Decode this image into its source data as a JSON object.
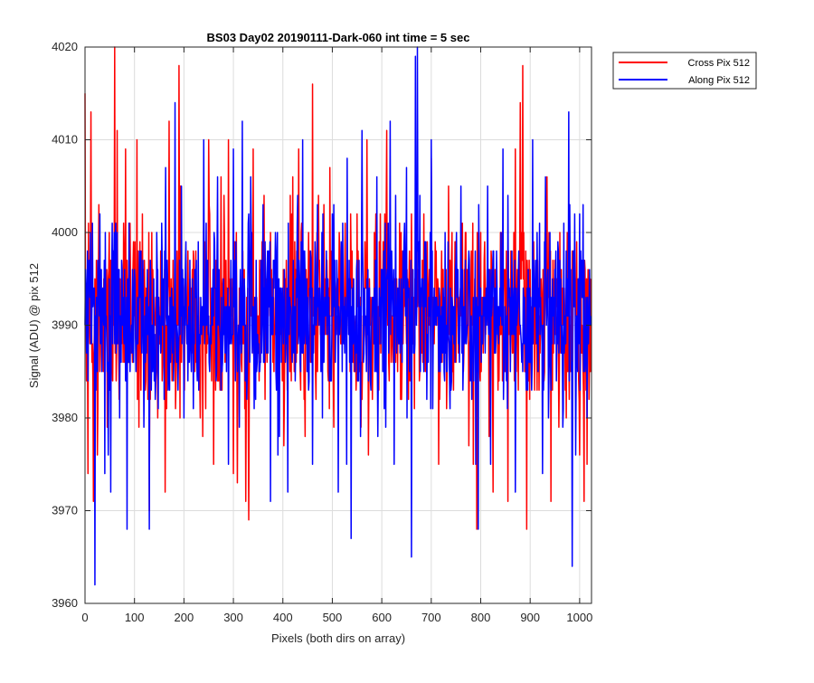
{
  "chart_data": {
    "type": "line",
    "title": "BS03 Day02 20190111-Dark-060 int time = 5 sec",
    "xlabel": "Pixels (both dirs on array)",
    "ylabel": "Signal (ADU) @ pix 512",
    "xlim": [
      0,
      1024
    ],
    "ylim": [
      3960,
      4020
    ],
    "xticks": [
      0,
      100,
      200,
      300,
      400,
      500,
      600,
      700,
      800,
      900,
      1000
    ],
    "xtick_labels": [
      "0",
      "100",
      "200",
      "300",
      "400",
      "500",
      "600",
      "700",
      "800",
      "900",
      "1000"
    ],
    "yticks": [
      3960,
      3970,
      3980,
      3990,
      4000,
      4010,
      4020
    ],
    "ytick_labels": [
      "3960",
      "3970",
      "3980",
      "3990",
      "4000",
      "4010",
      "4020"
    ],
    "grid": true,
    "legend_position": "top-right outside",
    "colors": {
      "series_red": "#ff0000",
      "series_blue": "#0000ff"
    },
    "series": [
      {
        "name": "Cross Pix 512",
        "color": "#ff0000",
        "noise": {
          "points": 1024,
          "mean": 3991,
          "seed": 1337
        },
        "spikes": [
          [
            0,
            4015
          ],
          [
            6,
            3974
          ],
          [
            12,
            4013
          ],
          [
            17,
            3971
          ],
          [
            25,
            3976
          ],
          [
            60,
            4020
          ],
          [
            65,
            4011
          ],
          [
            82,
            4009
          ],
          [
            105,
            4010
          ],
          [
            130,
            3970
          ],
          [
            162,
            3972
          ],
          [
            170,
            4012
          ],
          [
            190,
            4018
          ],
          [
            192,
            3980
          ],
          [
            228,
            3991
          ],
          [
            250,
            4010
          ],
          [
            260,
            3975
          ],
          [
            275,
            4006
          ],
          [
            290,
            4010
          ],
          [
            300,
            3974
          ],
          [
            308,
            3973
          ],
          [
            325,
            3971
          ],
          [
            331,
            3969
          ],
          [
            340,
            4009
          ],
          [
            362,
            4004
          ],
          [
            402,
            3977
          ],
          [
            415,
            4004
          ],
          [
            432,
            4009
          ],
          [
            445,
            3978
          ],
          [
            452,
            4000
          ],
          [
            460,
            4016
          ],
          [
            495,
            4007
          ],
          [
            530,
            3998
          ],
          [
            560,
            3982
          ],
          [
            570,
            4010
          ],
          [
            588,
            4002
          ],
          [
            610,
            4011
          ],
          [
            640,
            3982
          ],
          [
            660,
            4002
          ],
          [
            690,
            3997
          ],
          [
            700,
            4008
          ],
          [
            715,
            3975
          ],
          [
            735,
            4005
          ],
          [
            770,
            4000
          ],
          [
            785,
            3975
          ],
          [
            792,
            3968
          ],
          [
            800,
            4000
          ],
          [
            825,
            3972
          ],
          [
            840,
            4000
          ],
          [
            855,
            3971
          ],
          [
            870,
            4009
          ],
          [
            880,
            4014
          ],
          [
            885,
            4018
          ],
          [
            893,
            3968
          ],
          [
            915,
            3997
          ],
          [
            942,
            3971
          ],
          [
            960,
            4000
          ],
          [
            1000,
            3976
          ],
          [
            1009,
            3971
          ],
          [
            1015,
            3975
          ]
        ]
      },
      {
        "name": "Along Pix 512",
        "color": "#0000ff",
        "noise": {
          "points": 1024,
          "mean": 3991,
          "seed": 4242
        },
        "spikes": [
          [
            20,
            3962
          ],
          [
            40,
            3974
          ],
          [
            52,
            3972
          ],
          [
            70,
            3980
          ],
          [
            85,
            3968
          ],
          [
            130,
            3968
          ],
          [
            160,
            3982
          ],
          [
            163,
            4007
          ],
          [
            182,
            4014
          ],
          [
            195,
            4005
          ],
          [
            200,
            3980
          ],
          [
            215,
            3985
          ],
          [
            230,
            3983
          ],
          [
            240,
            4010
          ],
          [
            268,
            4006
          ],
          [
            290,
            3975
          ],
          [
            300,
            4009
          ],
          [
            318,
            4012
          ],
          [
            335,
            4006
          ],
          [
            360,
            4003
          ],
          [
            375,
            3971
          ],
          [
            390,
            3976
          ],
          [
            410,
            3972
          ],
          [
            430,
            4004
          ],
          [
            440,
            4010
          ],
          [
            460,
            3975
          ],
          [
            470,
            4003
          ],
          [
            480,
            3980
          ],
          [
            500,
            4002
          ],
          [
            512,
            3972
          ],
          [
            530,
            4008
          ],
          [
            538,
            3967
          ],
          [
            560,
            4011
          ],
          [
            590,
            4006
          ],
          [
            617,
            4012
          ],
          [
            625,
            3975
          ],
          [
            650,
            4007
          ],
          [
            660,
            3965
          ],
          [
            668,
            4019
          ],
          [
            672,
            4020
          ],
          [
            700,
            4010
          ],
          [
            718,
            3985
          ],
          [
            740,
            3983
          ],
          [
            760,
            4005
          ],
          [
            790,
            3975
          ],
          [
            795,
            3968
          ],
          [
            820,
            3975
          ],
          [
            845,
            4009
          ],
          [
            870,
            3972
          ],
          [
            905,
            4010
          ],
          [
            925,
            3974
          ],
          [
            940,
            4000
          ],
          [
            960,
            3997
          ],
          [
            978,
            4013
          ],
          [
            985,
            3964
          ],
          [
            992,
            3976
          ],
          [
            1000,
            4002
          ],
          [
            1015,
            3980
          ]
        ]
      }
    ]
  }
}
